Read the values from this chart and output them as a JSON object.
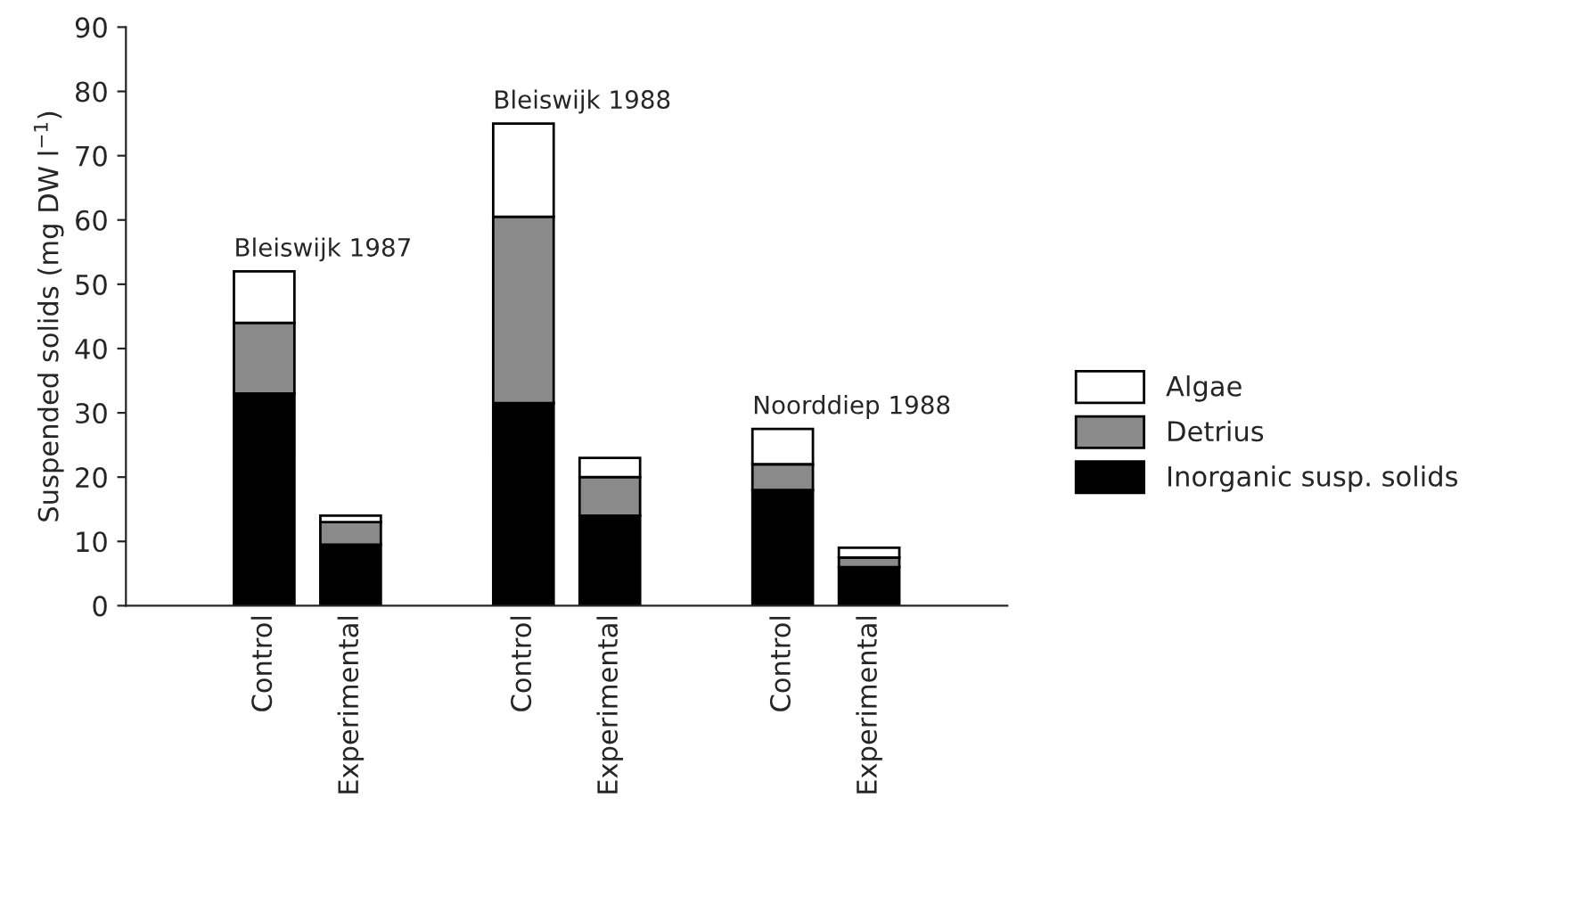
{
  "chart_data": {
    "type": "bar",
    "stacked": true,
    "ylabel": "Suspended solids (mg DW l$^{−1}$)",
    "categories": [
      null,
      "Control",
      "Experimental",
      null,
      "Control",
      "Experimental",
      null,
      "Control",
      "Experimental",
      null
    ],
    "series": [
      {
        "name": "Inorganic susp. solids",
        "color": "#000000",
        "values": [
          null,
          33,
          9.5,
          null,
          31.5,
          14,
          null,
          18,
          6,
          null
        ]
      },
      {
        "name": "Detrius",
        "color": "#8a8a8a",
        "values": [
          null,
          11,
          3.5,
          null,
          29,
          6,
          null,
          4,
          1.5,
          null
        ]
      },
      {
        "name": "Algae",
        "color": "#ffffff",
        "values": [
          null,
          8,
          1,
          null,
          14.5,
          3,
          null,
          5.5,
          1.5,
          null
        ]
      }
    ],
    "annotations": [
      "Bleiswijk 1987",
      "Bleiswijk 1988",
      "Noorddiep 1988"
    ],
    "ylim": [
      0,
      90
    ],
    "yticks": [
      0,
      10,
      20,
      30,
      40,
      50,
      60,
      70,
      80,
      90
    ],
    "grid": false,
    "legend": "right"
  }
}
